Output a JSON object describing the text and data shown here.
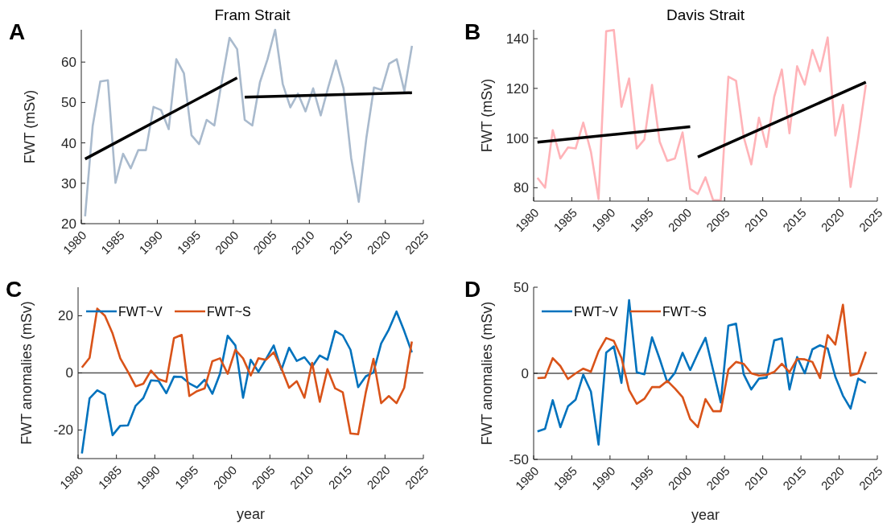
{
  "chart_data": [
    {
      "type": "line",
      "title": "Fram Strait",
      "ylabel": "FWT (mSv)",
      "annotations": [
        "A"
      ],
      "xlim": [
        1980,
        2025
      ],
      "xticks": [
        1980,
        1985,
        1990,
        1995,
        2000,
        2005,
        2010,
        2015,
        2020,
        2025
      ],
      "ylim": [
        20,
        68
      ],
      "yticks": [
        20,
        30,
        40,
        50,
        60
      ],
      "x": [
        1980.5,
        1981.5,
        1982.5,
        1983.5,
        1984.5,
        1985.5,
        1986.5,
        1987.5,
        1988.5,
        1989.5,
        1990.5,
        1991.5,
        1992.5,
        1993.5,
        1994.5,
        1995.5,
        1996.5,
        1997.5,
        1998.5,
        1999.5,
        2000.5,
        2001.5,
        2002.5,
        2003.5,
        2004.5,
        2005.5,
        2006.5,
        2007.5,
        2008.5,
        2009.5,
        2010.5,
        2011.5,
        2012.5,
        2013.5,
        2014.5,
        2015.5,
        2016.5,
        2017.5,
        2018.5,
        2019.5,
        2020.5,
        2021.5,
        2022.5,
        2023.5
      ],
      "series": [
        {
          "color": "#a9bacd",
          "values": [
            21.8,
            44.2,
            55.2,
            55.5,
            30.1,
            37.3,
            33.7,
            38.2,
            38.2,
            48.9,
            48.1,
            43.4,
            60.7,
            57.2,
            41.9,
            39.7,
            45.7,
            44.3,
            55.4,
            66,
            63.2,
            45.7,
            44.3,
            55,
            60.7,
            68,
            54.6,
            48.8,
            52.2,
            47.8,
            53.5,
            46.8,
            53.9,
            60.4,
            53.5,
            36.3,
            25.4,
            41.2,
            53.7,
            53.1,
            59.6,
            60.7,
            52.8,
            64
          ]
        },
        {
          "color": "#000000",
          "x": [
            1980.5,
            2000.5
          ],
          "values": [
            36,
            56.1
          ]
        },
        {
          "color": "#000000",
          "x": [
            2001.5,
            2023.5
          ],
          "values": [
            51.3,
            52.4
          ]
        }
      ]
    },
    {
      "type": "line",
      "title": "Davis Strait",
      "ylabel": "FWT (mSv)",
      "annotations": [
        "B"
      ],
      "xlim": [
        1980,
        2025
      ],
      "xticks": [
        1980,
        1985,
        1990,
        1995,
        2000,
        2005,
        2010,
        2015,
        2020,
        2025
      ],
      "ylim": [
        74.6,
        143.6
      ],
      "yticks": [
        80,
        100,
        120,
        140
      ],
      "x": [
        1980.5,
        1981.5,
        1982.5,
        1983.5,
        1984.5,
        1985.5,
        1986.5,
        1987.5,
        1988.5,
        1989.5,
        1990.5,
        1991.5,
        1992.5,
        1993.5,
        1994.5,
        1995.5,
        1996.5,
        1997.5,
        1998.5,
        1999.5,
        2000.5,
        2001.5,
        2002.5,
        2003.5,
        2004.5,
        2005.5,
        2006.5,
        2007.5,
        2008.5,
        2009.5,
        2010.5,
        2011.5,
        2012.5,
        2013.5,
        2014.5,
        2015.5,
        2016.5,
        2017.5,
        2018.5,
        2019.5,
        2020.5,
        2021.5,
        2022.5,
        2023.5
      ],
      "series": [
        {
          "color": "#ffb3b8",
          "values": [
            84,
            80,
            103.2,
            91.8,
            96.2,
            95.8,
            106.2,
            94.5,
            75.4,
            143,
            143.5,
            112.6,
            124,
            95.8,
            99.4,
            121.4,
            98.6,
            90.8,
            91.8,
            102.3,
            79.5,
            77.5,
            84.2,
            75,
            75,
            124.7,
            123.1,
            100.5,
            89.4,
            108.2,
            96.4,
            116.6,
            127.6,
            101.9,
            128.9,
            121.5,
            135.5,
            126.9,
            140.5,
            101,
            113.4,
            80.3,
            99.9,
            121.5
          ]
        },
        {
          "color": "#000000",
          "x": [
            1980.5,
            2000.5
          ],
          "values": [
            98.3,
            104.6
          ]
        },
        {
          "color": "#000000",
          "x": [
            2001.5,
            2023.5
          ],
          "values": [
            92.4,
            122.5
          ]
        }
      ]
    },
    {
      "type": "line",
      "xlabel": "year",
      "ylabel": "FWT anomalies (mSv)",
      "annotations": [
        "C"
      ],
      "legend": "top left",
      "xlim": [
        1980,
        2025
      ],
      "xticks": [
        1980,
        1985,
        1990,
        1995,
        2000,
        2005,
        2010,
        2015,
        2020,
        2025
      ],
      "ylim": [
        -30,
        30
      ],
      "yticks": [
        -20,
        0,
        20
      ],
      "ref_lines": [
        {
          "axis": "y",
          "value": 0,
          "color": "#555555"
        }
      ],
      "x": [
        1980.5,
        1981.5,
        1982.5,
        1983.5,
        1984.5,
        1985.5,
        1986.5,
        1987.5,
        1988.5,
        1989.5,
        1990.5,
        1991.5,
        1992.5,
        1993.5,
        1994.5,
        1995.5,
        1996.5,
        1997.5,
        1998.5,
        1999.5,
        2000.5,
        2001.5,
        2002.5,
        2003.5,
        2004.5,
        2005.5,
        2006.5,
        2007.5,
        2008.5,
        2009.5,
        2010.5,
        2011.5,
        2012.5,
        2013.5,
        2014.5,
        2015.5,
        2016.5,
        2017.5,
        2018.5,
        2019.5,
        2020.5,
        2021.5,
        2022.5,
        2023.5
      ],
      "series": [
        {
          "name": "FWT~V",
          "color": "#0072bd",
          "values": [
            -28.2,
            -8.9,
            -6.1,
            -7.6,
            -21.8,
            -18.5,
            -18.4,
            -11.5,
            -8.8,
            -2.6,
            -2.8,
            -7.1,
            -1.3,
            -1.4,
            -3.7,
            -5.1,
            -2.4,
            -7.3,
            -0.3,
            13,
            9.6,
            -8.7,
            4.6,
            0.4,
            4.9,
            9.6,
            1.1,
            8.8,
            4.2,
            5.5,
            2.1,
            6.1,
            4.6,
            14.7,
            13.1,
            8.1,
            -5,
            -1.2,
            0.2,
            10.3,
            15.2,
            21.5,
            14.7,
            7.2
          ]
        },
        {
          "name": "FWT~S",
          "color": "#d95319",
          "values": [
            1.9,
            5.3,
            22.5,
            20,
            13.8,
            5.1,
            0.4,
            -4.7,
            -3.8,
            0.8,
            -2.2,
            -3.1,
            12.2,
            13.3,
            -8.1,
            -6.4,
            -5.4,
            4.1,
            5.1,
            -0.3,
            8.1,
            5.1,
            -0.9,
            5.1,
            4.6,
            7.2,
            1.6,
            -5.2,
            -2.9,
            -8.7,
            3.5,
            -10.1,
            1.3,
            -5.4,
            -6.8,
            -21.2,
            -21.5,
            -6.8,
            4.9,
            -10.6,
            -8.1,
            -10.6,
            -5.2,
            11
          ]
        }
      ]
    },
    {
      "type": "line",
      "xlabel": "year",
      "ylabel": "FWT anomalies (mSv)",
      "annotations": [
        "D"
      ],
      "legend": "top left",
      "xlim": [
        1980,
        2025
      ],
      "xticks": [
        1980,
        1985,
        1990,
        1995,
        2000,
        2005,
        2010,
        2015,
        2020,
        2025
      ],
      "ylim": [
        -50,
        50
      ],
      "yticks": [
        -50,
        0,
        50
      ],
      "ref_lines": [
        {
          "axis": "y",
          "value": 0,
          "color": "#555555"
        }
      ],
      "x": [
        1980.5,
        1981.5,
        1982.5,
        1983.5,
        1984.5,
        1985.5,
        1986.5,
        1987.5,
        1988.5,
        1989.5,
        1990.5,
        1991.5,
        1992.5,
        1993.5,
        1994.5,
        1995.5,
        1996.5,
        1997.5,
        1998.5,
        1999.5,
        2000.5,
        2001.5,
        2002.5,
        2003.5,
        2004.5,
        2005.5,
        2006.5,
        2007.5,
        2008.5,
        2009.5,
        2010.5,
        2011.5,
        2012.5,
        2013.5,
        2014.5,
        2015.5,
        2016.5,
        2017.5,
        2018.5,
        2019.5,
        2020.5,
        2021.5,
        2022.5,
        2023.5
      ],
      "series": [
        {
          "name": "FWT~V",
          "color": "#0072bd",
          "values": [
            -33.8,
            -32.2,
            -15.6,
            -31.3,
            -19.2,
            -15.3,
            -0.8,
            -10.6,
            -41.4,
            12,
            15.6,
            -5.6,
            42.5,
            0.6,
            -0.6,
            20.9,
            8.4,
            -5.2,
            0.3,
            11.9,
            1.9,
            11.6,
            20.6,
            1.9,
            -16.9,
            27.7,
            28.8,
            -0.5,
            -9.4,
            -3.1,
            -2.5,
            19.1,
            20.3,
            -9.4,
            9.4,
            0,
            13.9,
            16.3,
            14.4,
            -2,
            -13,
            -20.5,
            -3.1,
            -5.6
          ]
        },
        {
          "name": "FWT~S",
          "color": "#d95319",
          "values": [
            -2.8,
            -2.5,
            8.8,
            4.2,
            -3.3,
            0,
            2.7,
            0.9,
            12.8,
            20.5,
            18.8,
            8.9,
            -9.8,
            -17.7,
            -14.8,
            -8,
            -8,
            -4.4,
            -8.8,
            -13.8,
            -26.6,
            -31.3,
            -15,
            -22,
            -22,
            2.2,
            6.6,
            5.5,
            0,
            -1.3,
            -0.9,
            0.8,
            5.5,
            0.6,
            8.4,
            8.1,
            6.6,
            -2.8,
            22.2,
            16.7,
            39.8,
            -1.3,
            0,
            12.5
          ]
        }
      ]
    }
  ]
}
